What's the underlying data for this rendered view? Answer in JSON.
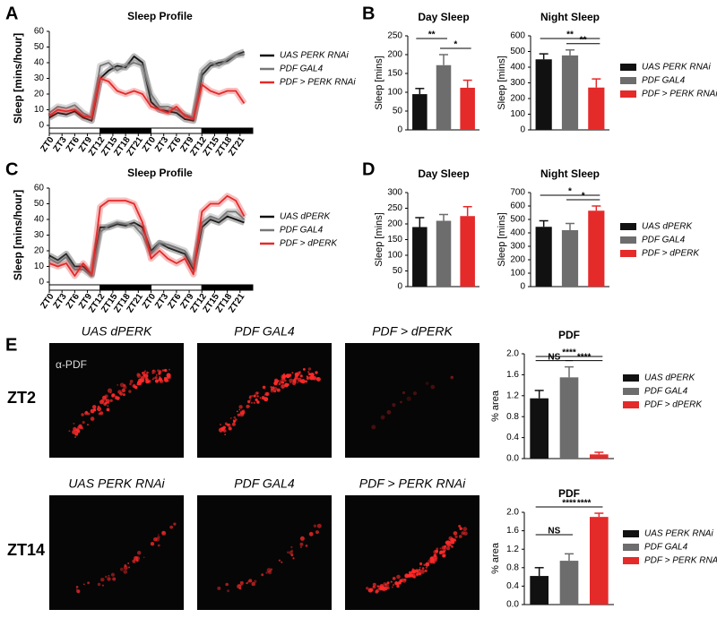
{
  "panel_labels": [
    "A",
    "B",
    "C",
    "D",
    "E"
  ],
  "images": {
    "stain": "α-PDF",
    "rows": [
      {
        "label": "ZT2",
        "columns": [
          "UAS dPERK",
          "PDF GAL4",
          "PDF > dPERK"
        ]
      },
      {
        "label": "ZT14",
        "columns": [
          "UAS PERK RNAi",
          "PDF GAL4",
          "PDF > PERK RNAi"
        ]
      }
    ]
  },
  "chart_data": [
    {
      "type": "line",
      "title": "Sleep Profile",
      "y_label": "Sleep [mins/hour]",
      "x": [
        0,
        2,
        4,
        6,
        8,
        10,
        12,
        14,
        16,
        18,
        20,
        22,
        24,
        26,
        28,
        30,
        32,
        34,
        36,
        38,
        40,
        42,
        44,
        46
      ],
      "xlim": [
        0,
        48
      ],
      "xticks": [
        {
          "value": 0,
          "label": "ZT0"
        },
        {
          "value": 3,
          "label": "ZT3"
        },
        {
          "value": 6,
          "label": "ZT6"
        },
        {
          "value": 9,
          "label": "ZT9"
        },
        {
          "value": 12,
          "label": "ZT12"
        },
        {
          "value": 15,
          "label": "ZT15"
        },
        {
          "value": 18,
          "label": "ZT18"
        },
        {
          "value": 21,
          "label": "ZT21"
        },
        {
          "value": 24,
          "label": "ZT0"
        },
        {
          "value": 27,
          "label": "ZT3"
        },
        {
          "value": 30,
          "label": "ZT6"
        },
        {
          "value": 33,
          "label": "ZT9"
        },
        {
          "value": 36,
          "label": "ZT12"
        },
        {
          "value": 39,
          "label": "ZT15"
        },
        {
          "value": 42,
          "label": "ZT18"
        },
        {
          "value": 45,
          "label": "ZT21"
        }
      ],
      "ylim": [
        0,
        60
      ],
      "yticks": [
        0,
        10,
        20,
        30,
        40,
        50,
        60
      ],
      "series": [
        {
          "name": "UAS PERK RNAi",
          "color": "#111111",
          "values": [
            5,
            8,
            7,
            9,
            5,
            3,
            30,
            35,
            38,
            37,
            44,
            40,
            15,
            10,
            9,
            8,
            4,
            3,
            32,
            38,
            40,
            41,
            45,
            47
          ]
        },
        {
          "name": "PDF GAL4",
          "color": "#777777",
          "values": [
            8,
            12,
            11,
            13,
            8,
            5,
            38,
            40,
            35,
            38,
            40,
            38,
            20,
            12,
            12,
            10,
            7,
            5,
            35,
            40,
            38,
            42,
            45,
            45
          ]
        },
        {
          "name": "PDF > PERK RNAi",
          "color": "#e52a2a",
          "values": [
            6,
            10,
            9,
            10,
            6,
            5,
            30,
            28,
            22,
            20,
            22,
            20,
            12,
            10,
            8,
            12,
            6,
            4,
            26,
            22,
            20,
            22,
            22,
            14
          ]
        }
      ]
    },
    {
      "type": "bar",
      "title": "Day Sleep",
      "y_label": "Sleep [mins]",
      "categories": [
        null,
        null,
        null
      ],
      "values": [
        95,
        172,
        112
      ],
      "errors": [
        15,
        28,
        20
      ],
      "colors": [
        "#111111",
        "#6d6d6d",
        "#e52a2a"
      ],
      "ylim": [
        0,
        250
      ],
      "yticks": [
        0,
        50,
        100,
        150,
        200,
        250
      ],
      "significance": [
        {
          "between": [
            0,
            1
          ],
          "label": "**"
        },
        {
          "between": [
            1,
            2
          ],
          "label": "*"
        }
      ]
    },
    {
      "type": "bar",
      "title": "Night Sleep",
      "y_label": "Sleep [mins]",
      "categories": [
        null,
        null,
        null
      ],
      "values": [
        450,
        475,
        270
      ],
      "errors": [
        35,
        35,
        55
      ],
      "colors": [
        "#111111",
        "#6d6d6d",
        "#e52a2a"
      ],
      "ylim": [
        0,
        600
      ],
      "yticks": [
        0,
        100,
        200,
        300,
        400,
        500,
        600
      ],
      "significance": [
        {
          "between": [
            0,
            2
          ],
          "label": "**"
        },
        {
          "between": [
            1,
            2
          ],
          "label": "**"
        }
      ],
      "legend": [
        "UAS PERK RNAi",
        "PDF GAL4",
        "PDF > PERK RNAi"
      ]
    },
    {
      "type": "line",
      "title": "Sleep Profile",
      "y_label": "Sleep [mins/hour]",
      "x": [
        0,
        2,
        4,
        6,
        8,
        10,
        12,
        14,
        16,
        18,
        20,
        22,
        24,
        26,
        28,
        30,
        32,
        34,
        36,
        38,
        40,
        42,
        44,
        46
      ],
      "xlim": [
        0,
        48
      ],
      "xticks": [
        {
          "value": 0,
          "label": "ZT0"
        },
        {
          "value": 3,
          "label": "ZT3"
        },
        {
          "value": 6,
          "label": "ZT6"
        },
        {
          "value": 9,
          "label": "ZT9"
        },
        {
          "value": 12,
          "label": "ZT12"
        },
        {
          "value": 15,
          "label": "ZT15"
        },
        {
          "value": 18,
          "label": "ZT18"
        },
        {
          "value": 21,
          "label": "ZT21"
        },
        {
          "value": 24,
          "label": "ZT0"
        },
        {
          "value": 27,
          "label": "ZT3"
        },
        {
          "value": 30,
          "label": "ZT6"
        },
        {
          "value": 33,
          "label": "ZT9"
        },
        {
          "value": 36,
          "label": "ZT12"
        },
        {
          "value": 39,
          "label": "ZT15"
        },
        {
          "value": 42,
          "label": "ZT18"
        },
        {
          "value": 45,
          "label": "ZT21"
        }
      ],
      "ylim": [
        0,
        60
      ],
      "yticks": [
        0,
        10,
        20,
        30,
        40,
        50,
        60
      ],
      "series": [
        {
          "name": "UAS dPERK",
          "color": "#111111",
          "values": [
            17,
            14,
            18,
            10,
            10,
            5,
            35,
            35,
            37,
            36,
            38,
            35,
            20,
            25,
            22,
            20,
            18,
            8,
            35,
            40,
            38,
            42,
            40,
            38
          ]
        },
        {
          "name": "PDF GAL4",
          "color": "#777777",
          "values": [
            15,
            12,
            16,
            8,
            8,
            4,
            32,
            36,
            38,
            37,
            36,
            30,
            18,
            25,
            24,
            22,
            20,
            10,
            38,
            42,
            40,
            45,
            45,
            40
          ]
        },
        {
          "name": "PDF > dPERK",
          "color": "#e52a2a",
          "values": [
            12,
            10,
            12,
            4,
            12,
            5,
            48,
            52,
            52,
            52,
            50,
            38,
            15,
            20,
            15,
            12,
            15,
            5,
            45,
            50,
            50,
            55,
            52,
            42
          ]
        }
      ]
    },
    {
      "type": "bar",
      "title": "Day Sleep",
      "y_label": "Sleep [mins]",
      "categories": [
        null,
        null,
        null
      ],
      "values": [
        190,
        210,
        225
      ],
      "errors": [
        30,
        20,
        30
      ],
      "colors": [
        "#111111",
        "#6d6d6d",
        "#e52a2a"
      ],
      "ylim": [
        0,
        300
      ],
      "yticks": [
        0,
        50,
        100,
        150,
        200,
        250,
        300
      ]
    },
    {
      "type": "bar",
      "title": "Night Sleep",
      "y_label": "Sleep [mins]",
      "categories": [
        null,
        null,
        null
      ],
      "values": [
        445,
        420,
        565
      ],
      "errors": [
        45,
        50,
        35
      ],
      "colors": [
        "#111111",
        "#6d6d6d",
        "#e52a2a"
      ],
      "ylim": [
        0,
        700
      ],
      "yticks": [
        0,
        100,
        200,
        300,
        400,
        500,
        600,
        700
      ],
      "significance": [
        {
          "between": [
            0,
            2
          ],
          "label": "*"
        },
        {
          "between": [
            1,
            2
          ],
          "label": "*"
        }
      ],
      "legend": [
        "UAS dPERK",
        "PDF GAL4",
        "PDF > dPERK"
      ]
    },
    {
      "type": "bar",
      "title": "PDF",
      "y_label": "% area",
      "categories": [
        null,
        null,
        null
      ],
      "values": [
        1.15,
        1.55,
        0.08
      ],
      "errors": [
        0.15,
        0.2,
        0.04
      ],
      "colors": [
        "#111111",
        "#6d6d6d",
        "#e52a2a"
      ],
      "ylim": [
        0,
        2.0
      ],
      "yticks": [
        {
          "value": 0,
          "label": "0.0"
        },
        {
          "value": 0.4,
          "label": "0.4"
        },
        {
          "value": 0.8,
          "label": "0.8"
        },
        {
          "value": 1.2,
          "label": "1.2"
        },
        {
          "value": 1.6,
          "label": "1.6"
        },
        {
          "value": 2.0,
          "label": "2.0"
        }
      ],
      "significance": [
        {
          "between": [
            0,
            2
          ],
          "label": "****"
        },
        {
          "between": [
            1,
            2
          ],
          "label": "****"
        },
        {
          "between": [
            0,
            1
          ],
          "label": "NS"
        }
      ],
      "legend": [
        "UAS dPERK",
        "PDF GAL4",
        "PDF > dPERK"
      ]
    },
    {
      "type": "bar",
      "title": "PDF",
      "y_label": "% area",
      "categories": [
        null,
        null,
        null
      ],
      "values": [
        0.62,
        0.95,
        1.9
      ],
      "errors": [
        0.18,
        0.15,
        0.08
      ],
      "colors": [
        "#111111",
        "#6d6d6d",
        "#e52a2a"
      ],
      "ylim": [
        0,
        2.0
      ],
      "yticks": [
        {
          "value": 0,
          "label": "0.0"
        },
        {
          "value": 0.4,
          "label": "0.4"
        },
        {
          "value": 0.8,
          "label": "0.8"
        },
        {
          "value": 1.2,
          "label": "1.2"
        },
        {
          "value": 1.6,
          "label": "1.6"
        },
        {
          "value": 2.0,
          "label": "2.0"
        }
      ],
      "significance": [
        {
          "between": [
            0,
            2
          ],
          "label": "****"
        },
        {
          "between": [
            1,
            2
          ],
          "label": "****"
        },
        {
          "between": [
            0,
            1
          ],
          "label": "NS"
        }
      ],
      "legend": [
        "UAS PERK RNAi",
        "PDF GAL4",
        "PDF > PERK RNAi"
      ]
    }
  ]
}
